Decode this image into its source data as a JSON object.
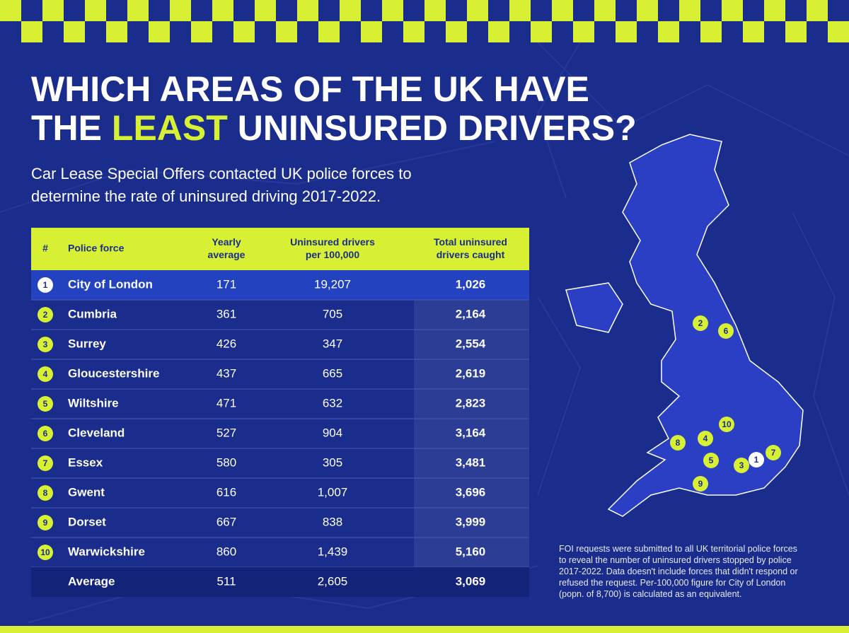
{
  "header": {
    "title_line1": "WHICH AREAS OF THE UK HAVE",
    "title_line2_start": "THE",
    "title_highlight": "LEAST",
    "title_line2_end": "UNINSURED DRIVERS?",
    "subtitle": "Car Lease Special Offers contacted UK police forces to determine the rate of uninsured driving 2017-2022."
  },
  "table": {
    "columns": [
      "#",
      "Police force",
      "Yearly average",
      "Uninsured drivers per 100,000",
      "Total uninsured drivers caught"
    ],
    "rows": [
      [
        "1",
        "City of London",
        "171",
        "19,207",
        "1,026"
      ],
      [
        "2",
        "Cumbria",
        "361",
        "705",
        "2,164"
      ],
      [
        "3",
        "Surrey",
        "426",
        "347",
        "2,554"
      ],
      [
        "4",
        "Gloucestershire",
        "437",
        "665",
        "2,619"
      ],
      [
        "5",
        "Wiltshire",
        "471",
        "632",
        "2,823"
      ],
      [
        "6",
        "Cleveland",
        "527",
        "904",
        "3,164"
      ],
      [
        "7",
        "Essex",
        "580",
        "305",
        "3,481"
      ],
      [
        "8",
        "Gwent",
        "616",
        "1,007",
        "3,696"
      ],
      [
        "9",
        "Dorset",
        "667",
        "838",
        "3,999"
      ],
      [
        "10",
        "Warwickshire",
        "860",
        "1,439",
        "5,160"
      ]
    ],
    "average": [
      "Average",
      "511",
      "2,605",
      "3,069"
    ]
  },
  "footnote": "FOI requests were submitted to all UK territorial police forces to reveal the number of uninsured drivers stopped by police 2017-2022. Data doesn't include forces that didn't respond or refused the request. Per-100,000 figure for City of London (popn. of 8,700) is calculated as an equivalent."
}
